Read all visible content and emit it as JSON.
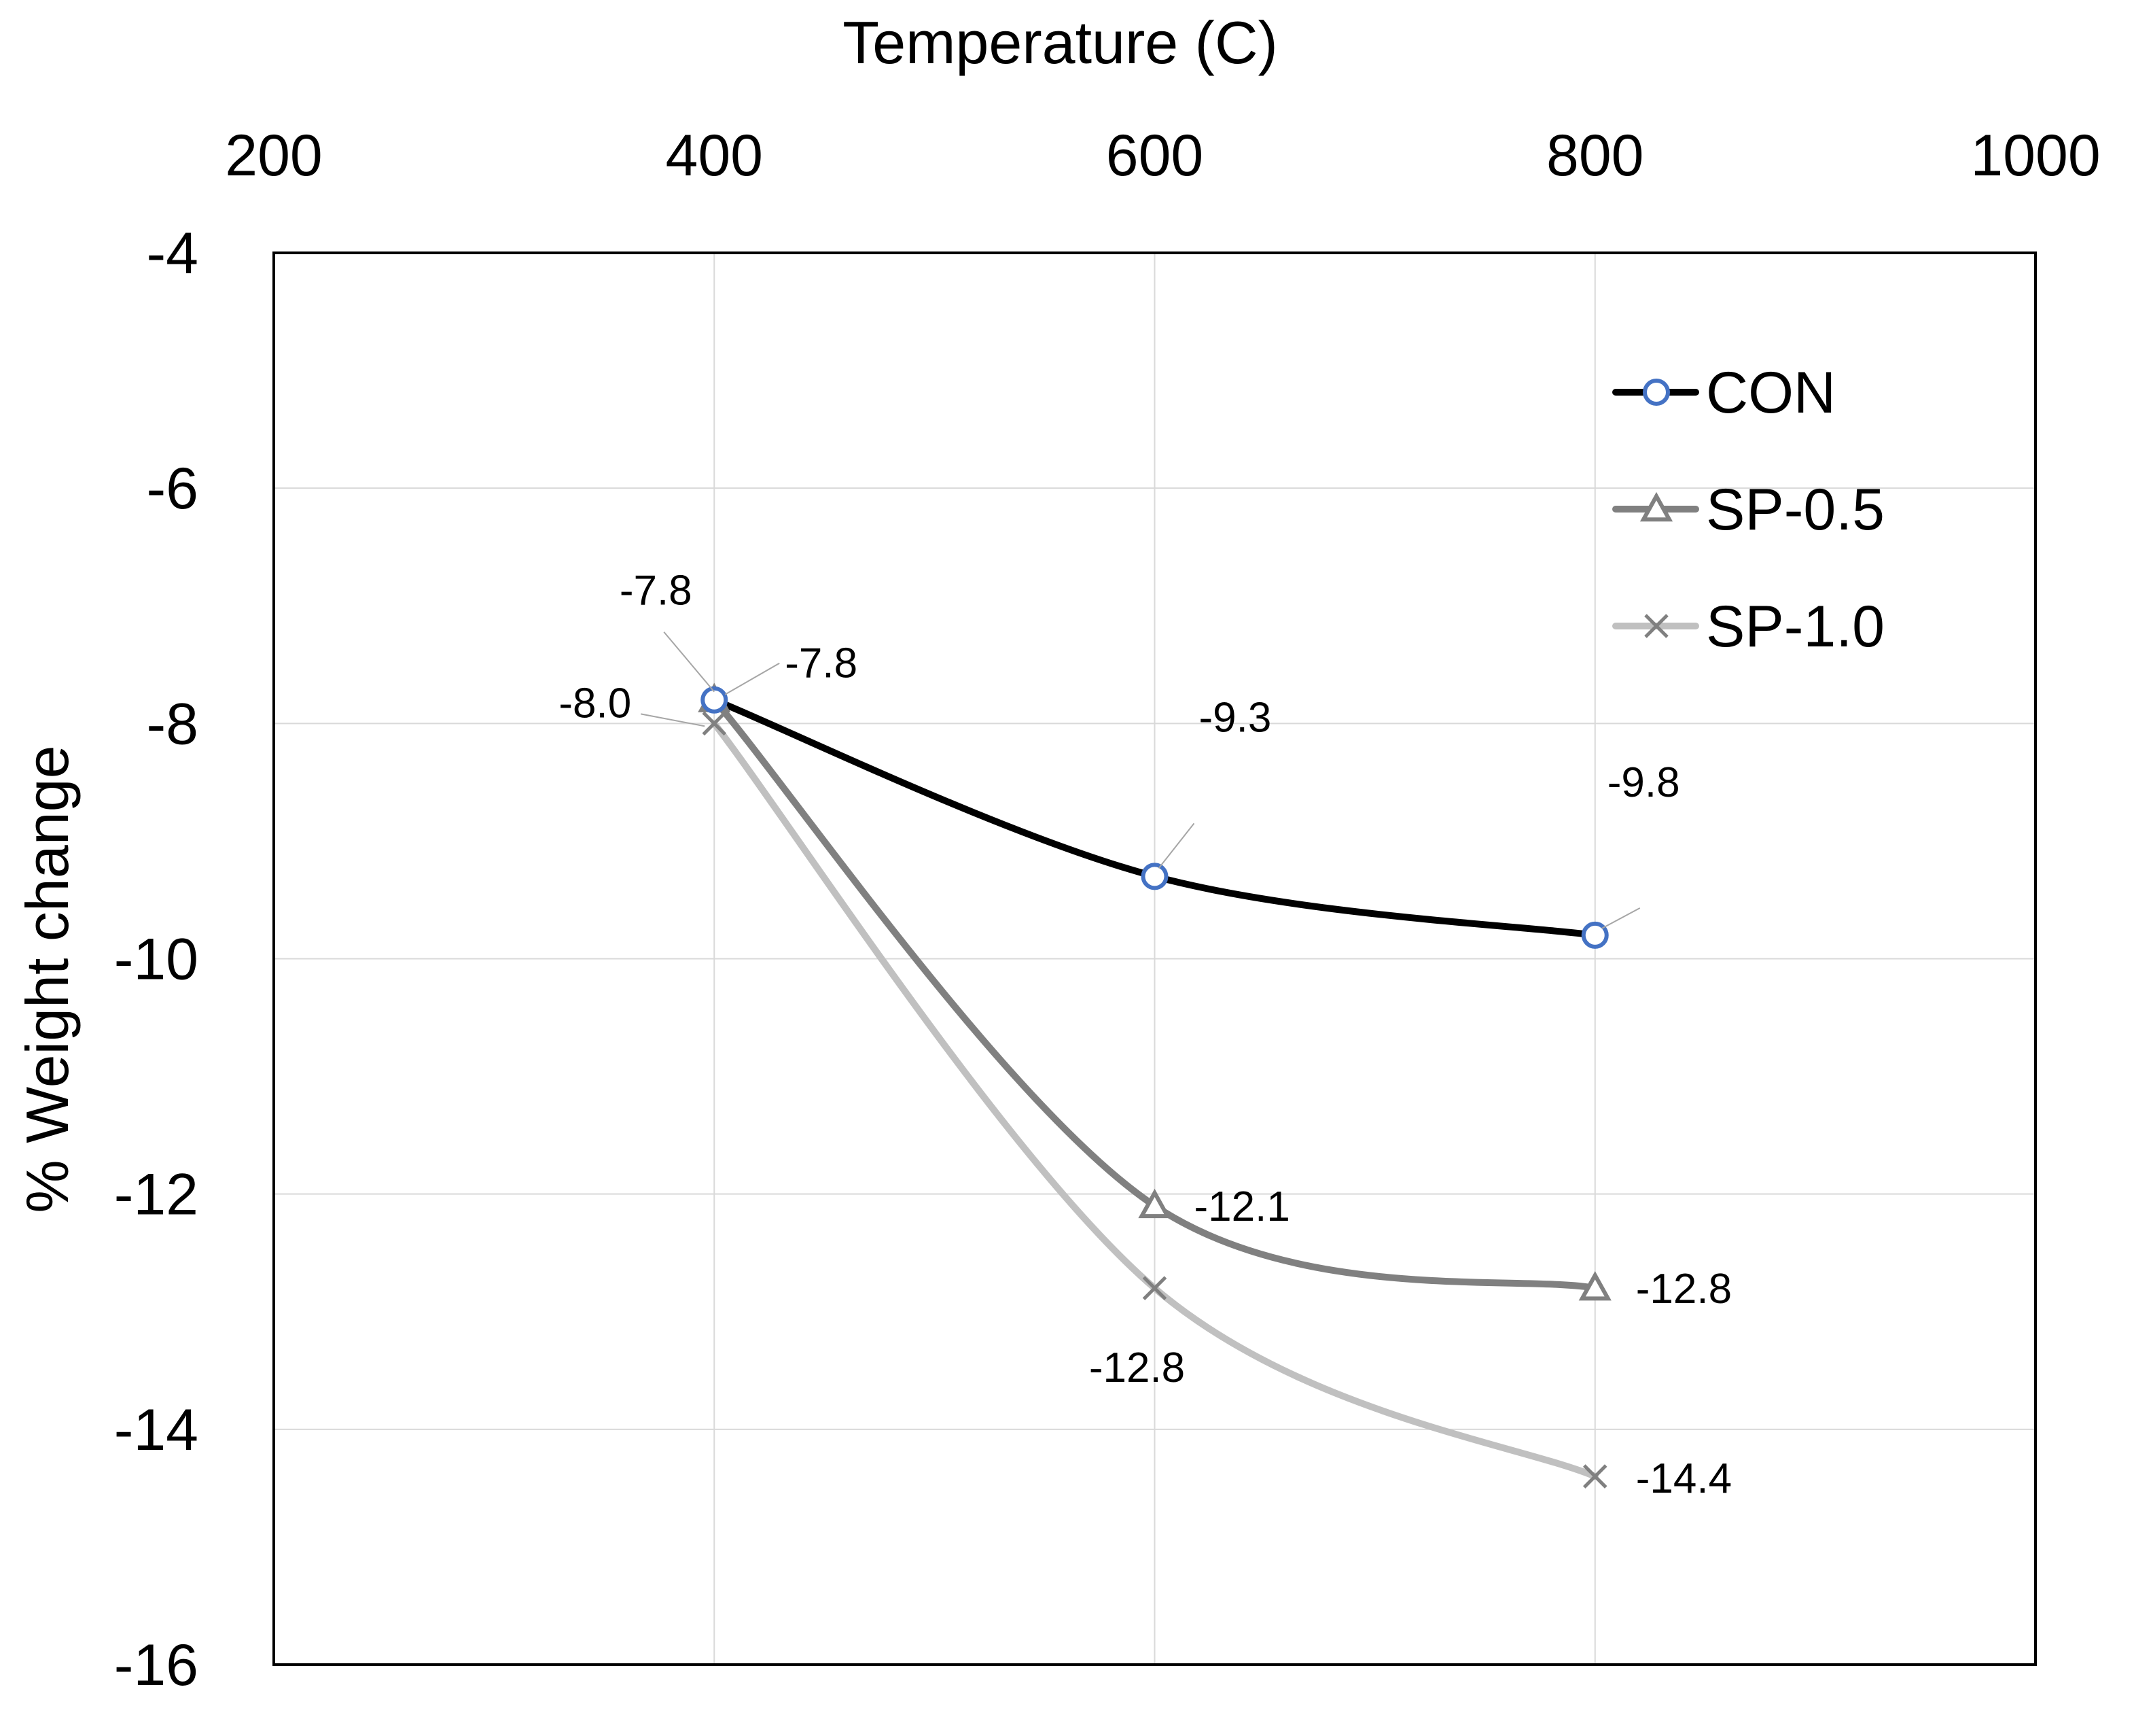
{
  "chart_data": {
    "type": "line",
    "title": "",
    "xlabel": "Temperature (C)",
    "ylabel": "% Weight change",
    "xlim": [
      200,
      1000
    ],
    "ylim": [
      -16,
      -4
    ],
    "x_ticks": [
      200,
      400,
      600,
      800,
      1000
    ],
    "y_ticks": [
      -4,
      -6,
      -8,
      -10,
      -12,
      -14,
      -16
    ],
    "x_tick_labels": [
      "200",
      "400",
      "600",
      "800",
      "1000"
    ],
    "y_tick_labels": [
      "-4",
      "-6",
      "-8",
      "-10",
      "-12",
      "-14",
      "-16"
    ],
    "x_axis_position": "top",
    "grid": true,
    "smooth": true,
    "legend_position": "top-right",
    "x": [
      400,
      600,
      800
    ],
    "series": [
      {
        "name": "CON",
        "values": [
          -7.8,
          -9.3,
          -9.8
        ],
        "labels": [
          "-7.8",
          "-9.3",
          "-9.8"
        ],
        "line_color": "#000000",
        "marker": "circle",
        "marker_color": "#4472C4"
      },
      {
        "name": "SP-0.5",
        "values": [
          -7.8,
          -12.1,
          -12.8
        ],
        "labels": [
          "-7.8",
          "-12.1",
          "-12.8"
        ],
        "line_color": "#808080",
        "marker": "triangle",
        "marker_color": "#808080"
      },
      {
        "name": "SP-1.0",
        "values": [
          -8.0,
          -12.8,
          -14.4
        ],
        "labels": [
          "-8.0",
          "-12.8",
          "-14.4"
        ],
        "line_color": "#C0C0C0",
        "marker": "x",
        "marker_color": "#808080"
      }
    ]
  }
}
